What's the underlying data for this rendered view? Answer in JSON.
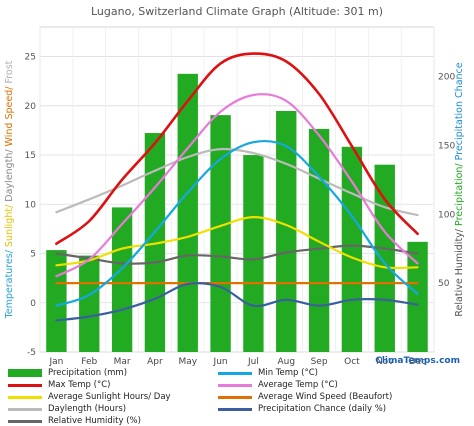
{
  "chart_data": {
    "type": "bar+line",
    "title": "Lugano, Switzerland Climate Graph (Altitude: 301 m)",
    "categories": [
      "Jan",
      "Feb",
      "Mar",
      "Apr",
      "May",
      "Jun",
      "Jul",
      "Aug",
      "Sep",
      "Oct",
      "Nov",
      "Dec"
    ],
    "left_axis": {
      "label_parts": [
        {
          "text": "Temperatures/ ",
          "color": "#29a3d8"
        },
        {
          "text": "Sunlight/ ",
          "color": "#e6c200"
        },
        {
          "text": "Daylength/ ",
          "color": "#888888"
        },
        {
          "text": "Wind Speed/ ",
          "color": "#e07000"
        },
        {
          "text": "Frost",
          "color": "#b0b0b0"
        }
      ],
      "ylim": [
        -5,
        28
      ],
      "ticks": [
        -5,
        0,
        5,
        10,
        15,
        20,
        25
      ]
    },
    "right_axis": {
      "label_parts": [
        {
          "text": "Relative Humidity/ ",
          "color": "#555555"
        },
        {
          "text": "Precipitation/ ",
          "color": "#22aa22"
        },
        {
          "text": "Precipitation Chance",
          "color": "#1b8fd8"
        }
      ],
      "ylim": [
        0,
        236
      ],
      "ticks": [
        50,
        100,
        150,
        200
      ]
    },
    "series": [
      {
        "name": "Precipitation (mm)",
        "kind": "bar",
        "axis": "right",
        "color": "#22aa22",
        "values": [
          74,
          70,
          105,
          159,
          202,
          172,
          143,
          175,
          162,
          149,
          136,
          80
        ]
      },
      {
        "name": "Min Temp (°C)",
        "kind": "line",
        "axis": "left",
        "color": "#14a8e0",
        "values": [
          -0.3,
          0.8,
          3.5,
          7.2,
          11.2,
          14.6,
          16.3,
          15.9,
          12.8,
          8.8,
          4.0,
          0.9
        ]
      },
      {
        "name": "Max Temp (°C)",
        "kind": "line",
        "axis": "left",
        "color": "#dd1111",
        "values": [
          6.0,
          8.3,
          12.5,
          16.2,
          20.5,
          24.3,
          25.3,
          24.5,
          21.2,
          15.9,
          10.5,
          7.0
        ]
      },
      {
        "name": "Average Temp (°C)",
        "kind": "line",
        "axis": "left",
        "color": "#e87ad8",
        "values": [
          2.7,
          4.4,
          8.0,
          11.7,
          15.7,
          19.4,
          21.1,
          20.5,
          17.0,
          12.3,
          7.2,
          4.0
        ]
      },
      {
        "name": "Average Sunlight Hours/ Day",
        "kind": "line",
        "axis": "left",
        "color": "#f0e000",
        "values": [
          3.8,
          4.3,
          5.5,
          6.0,
          6.7,
          7.8,
          8.7,
          7.9,
          6.2,
          4.6,
          3.6,
          3.6
        ]
      },
      {
        "name": "Average Wind Speed (Beaufort)",
        "kind": "line",
        "axis": "left",
        "color": "#e07000",
        "values": [
          2.0,
          2.0,
          2.0,
          2.0,
          2.0,
          2.0,
          2.0,
          2.0,
          2.0,
          2.0,
          2.0,
          2.0
        ]
      },
      {
        "name": "Daylength (Hours)",
        "kind": "line",
        "axis": "left",
        "color": "#bbbbbb",
        "values": [
          9.2,
          10.5,
          11.9,
          13.4,
          14.8,
          15.6,
          15.2,
          14.1,
          12.6,
          11.1,
          9.7,
          8.9
        ]
      },
      {
        "name": "Precipitation Chance (daily %)",
        "kind": "line",
        "axis": "left",
        "color": "#3a5f9e",
        "values": [
          -1.8,
          -1.4,
          -0.7,
          0.4,
          1.9,
          1.6,
          -0.3,
          0.3,
          -0.3,
          0.3,
          0.3,
          -0.2
        ]
      },
      {
        "name": "Relative Humidity (%)",
        "kind": "line",
        "axis": "left",
        "color": "#666666",
        "values": [
          5.0,
          4.5,
          4.0,
          4.1,
          4.8,
          4.7,
          4.4,
          5.1,
          5.5,
          5.8,
          5.5,
          5.0
        ]
      }
    ],
    "grid": true,
    "legend": "bottom",
    "brand": "ClimaTemps.com"
  }
}
